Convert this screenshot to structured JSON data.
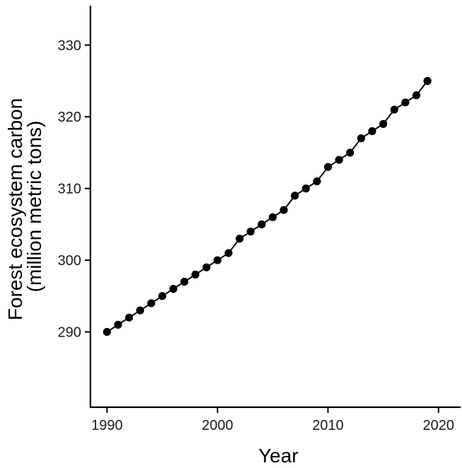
{
  "chart_data": {
    "type": "line",
    "title": "",
    "xlabel": "Year",
    "ylabel_lines": [
      "Forest ecosystem carbon",
      "(million metric tons)"
    ],
    "xlim": [
      1988.5,
      2022
    ],
    "ylim": [
      279.5,
      335.5
    ],
    "xticks": [
      1990,
      2000,
      2010,
      2020
    ],
    "yticks": [
      290,
      300,
      310,
      320,
      330
    ],
    "x_tick_labels": [
      "1990",
      "2000",
      "2010",
      "2020"
    ],
    "y_tick_labels": [
      "290",
      "300",
      "310",
      "320",
      "330"
    ],
    "grid": false,
    "legend": "none",
    "markers": true,
    "colors": {
      "line": "#000000",
      "marker": "#000000",
      "axis": "#000000"
    },
    "series": [
      {
        "x": [
          1990,
          1991,
          1992,
          1993,
          1994,
          1995,
          1996,
          1997,
          1998,
          1999,
          2000,
          2001,
          2002,
          2003,
          2004,
          2005,
          2006,
          2007,
          2008,
          2009,
          2010,
          2011,
          2012,
          2013,
          2014,
          2015,
          2016,
          2017,
          2018,
          2019
        ],
        "values": [
          290,
          291,
          292,
          293,
          294,
          295,
          296,
          297,
          298,
          299,
          300,
          301,
          303,
          304,
          305,
          306,
          307,
          309,
          310,
          311,
          313,
          314,
          315,
          317,
          318,
          319,
          321,
          322,
          323,
          325
        ]
      }
    ]
  }
}
